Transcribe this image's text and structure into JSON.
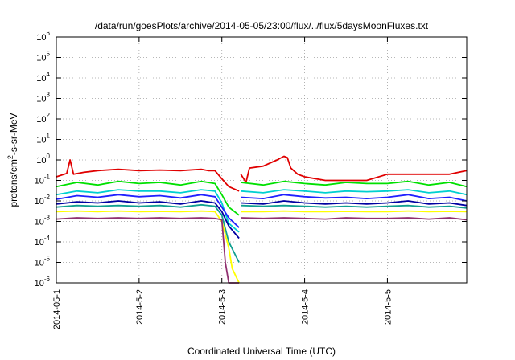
{
  "chart_data": {
    "type": "line",
    "title": "/data/run/goesPlots/archive/2014-05-05/23:00/flux/../flux/5daysMoonFluxes.txt",
    "xlabel": "Coordinated Universal Time (UTC)",
    "ylabel_parts": {
      "pre": "protons/cm",
      "sup": "2",
      "post": "-s-sr-MeV"
    },
    "y_scale": "log",
    "ylim": [
      1e-06,
      1000000.0
    ],
    "y_ticks": [
      {
        "value": 1e-06,
        "base": "10",
        "exp": "-6"
      },
      {
        "value": 1e-05,
        "base": "10",
        "exp": "-5"
      },
      {
        "value": 0.0001,
        "base": "10",
        "exp": "-4"
      },
      {
        "value": 0.001,
        "base": "10",
        "exp": "-3"
      },
      {
        "value": 0.01,
        "base": "10",
        "exp": "-2"
      },
      {
        "value": 0.1,
        "base": "10",
        "exp": "-1"
      },
      {
        "value": 1.0,
        "base": "10",
        "exp": "0"
      },
      {
        "value": 10.0,
        "base": "10",
        "exp": "1"
      },
      {
        "value": 100.0,
        "base": "10",
        "exp": "2"
      },
      {
        "value": 1000.0,
        "base": "10",
        "exp": "3"
      },
      {
        "value": 10000.0,
        "base": "10",
        "exp": "4"
      },
      {
        "value": 100000.0,
        "base": "10",
        "exp": "5"
      },
      {
        "value": 1000000.0,
        "base": "10",
        "exp": "6"
      }
    ],
    "xlim": [
      "2014-05-01T00:00",
      "2014-05-05T23:00"
    ],
    "x_ticks": [
      {
        "value": "2014-05-01T00:00",
        "label": "2014-05-1"
      },
      {
        "value": "2014-05-02T00:00",
        "label": "2014-5-2"
      },
      {
        "value": "2014-05-03T00:00",
        "label": "2014-5-3"
      },
      {
        "value": "2014-05-04T00:00",
        "label": "2014-5-4"
      },
      {
        "value": "2014-05-05T00:00",
        "label": "2014-5-5"
      }
    ],
    "grid": true,
    "legend": "none",
    "gap": [
      "2014-05-03T05:00",
      "2014-05-03T05:30"
    ],
    "series": [
      {
        "color": "#e00000",
        "x": [
          "2014-05-01T00:00",
          "2014-05-01T03:00",
          "2014-05-01T04:00",
          "2014-05-01T05:00",
          "2014-05-01T08:00",
          "2014-05-01T12:00",
          "2014-05-01T18:00",
          "2014-05-02T00:00",
          "2014-05-02T06:00",
          "2014-05-02T12:00",
          "2014-05-02T18:00",
          "2014-05-02T20:00",
          "2014-05-02T22:00",
          "2014-05-03T00:00",
          "2014-05-03T02:00",
          "2014-05-03T05:00",
          "2014-05-03T05:30",
          "2014-05-03T07:00",
          "2014-05-03T08:00",
          "2014-05-03T12:00",
          "2014-05-03T16:00",
          "2014-05-03T18:00",
          "2014-05-03T19:00",
          "2014-05-03T20:00",
          "2014-05-03T22:00",
          "2014-05-04T00:00",
          "2014-05-04T06:00",
          "2014-05-04T12:00",
          "2014-05-04T18:00",
          "2014-05-05T00:00",
          "2014-05-05T06:00",
          "2014-05-05T12:00",
          "2014-05-05T18:00",
          "2014-05-05T23:00"
        ],
        "values": [
          0.15,
          0.22,
          1.0,
          0.2,
          0.25,
          0.3,
          0.35,
          0.3,
          0.32,
          0.3,
          0.35,
          0.3,
          0.3,
          0.12,
          0.05,
          0.03,
          0.2,
          0.08,
          0.4,
          0.5,
          1.0,
          1.5,
          1.3,
          0.4,
          0.2,
          0.15,
          0.1,
          0.1,
          0.1,
          0.2,
          0.2,
          0.2,
          0.2,
          0.3
        ]
      },
      {
        "color": "#00e000",
        "x": [
          "2014-05-01T00:00",
          "2014-05-01T06:00",
          "2014-05-01T12:00",
          "2014-05-01T18:00",
          "2014-05-02T00:00",
          "2014-05-02T06:00",
          "2014-05-02T12:00",
          "2014-05-02T18:00",
          "2014-05-02T22:00",
          "2014-05-03T00:00",
          "2014-05-03T02:00",
          "2014-05-03T05:00",
          "2014-05-03T05:30",
          "2014-05-03T12:00",
          "2014-05-03T18:00",
          "2014-05-04T00:00",
          "2014-05-04T06:00",
          "2014-05-04T12:00",
          "2014-05-04T18:00",
          "2014-05-05T00:00",
          "2014-05-05T06:00",
          "2014-05-05T12:00",
          "2014-05-05T18:00",
          "2014-05-05T23:00"
        ],
        "values": [
          0.05,
          0.08,
          0.06,
          0.09,
          0.07,
          0.08,
          0.06,
          0.09,
          0.07,
          0.02,
          0.005,
          0.002,
          0.08,
          0.06,
          0.09,
          0.07,
          0.06,
          0.08,
          0.07,
          0.07,
          0.09,
          0.06,
          0.08,
          0.05
        ]
      },
      {
        "color": "#00d0d0",
        "x": [
          "2014-05-01T00:00",
          "2014-05-01T06:00",
          "2014-05-01T12:00",
          "2014-05-01T18:00",
          "2014-05-02T00:00",
          "2014-05-02T06:00",
          "2014-05-02T12:00",
          "2014-05-02T18:00",
          "2014-05-02T22:00",
          "2014-05-03T00:00",
          "2014-05-03T02:00",
          "2014-05-03T05:00",
          "2014-05-03T05:30",
          "2014-05-03T12:00",
          "2014-05-03T18:00",
          "2014-05-04T00:00",
          "2014-05-04T06:00",
          "2014-05-04T12:00",
          "2014-05-04T18:00",
          "2014-05-05T00:00",
          "2014-05-05T06:00",
          "2014-05-05T12:00",
          "2014-05-05T18:00",
          "2014-05-05T23:00"
        ],
        "values": [
          0.02,
          0.03,
          0.025,
          0.035,
          0.03,
          0.03,
          0.025,
          0.035,
          0.03,
          0.008,
          0.0008,
          0.0003,
          0.03,
          0.025,
          0.035,
          0.03,
          0.025,
          0.03,
          0.028,
          0.03,
          0.035,
          0.025,
          0.03,
          0.02
        ]
      },
      {
        "color": "#2020ff",
        "x": [
          "2014-05-01T00:00",
          "2014-05-01T06:00",
          "2014-05-01T12:00",
          "2014-05-01T18:00",
          "2014-05-02T00:00",
          "2014-05-02T06:00",
          "2014-05-02T12:00",
          "2014-05-02T18:00",
          "2014-05-02T22:00",
          "2014-05-03T00:00",
          "2014-05-03T02:00",
          "2014-05-03T05:00",
          "2014-05-03T05:30",
          "2014-05-03T12:00",
          "2014-05-03T18:00",
          "2014-05-04T00:00",
          "2014-05-04T06:00",
          "2014-05-04T12:00",
          "2014-05-04T18:00",
          "2014-05-05T00:00",
          "2014-05-05T06:00",
          "2014-05-05T12:00",
          "2014-05-05T18:00",
          "2014-05-05T23:00"
        ],
        "values": [
          0.012,
          0.018,
          0.015,
          0.02,
          0.016,
          0.018,
          0.014,
          0.02,
          0.016,
          0.005,
          0.0015,
          0.0005,
          0.015,
          0.013,
          0.02,
          0.016,
          0.014,
          0.015,
          0.013,
          0.015,
          0.02,
          0.013,
          0.015,
          0.01
        ]
      },
      {
        "color": "#0000a0",
        "x": [
          "2014-05-01T00:00",
          "2014-05-01T06:00",
          "2014-05-01T12:00",
          "2014-05-01T18:00",
          "2014-05-02T00:00",
          "2014-05-02T06:00",
          "2014-05-02T12:00",
          "2014-05-02T18:00",
          "2014-05-02T22:00",
          "2014-05-03T00:00",
          "2014-05-03T02:00",
          "2014-05-03T05:00",
          "2014-05-03T05:30",
          "2014-05-03T12:00",
          "2014-05-03T18:00",
          "2014-05-04T00:00",
          "2014-05-04T06:00",
          "2014-05-04T12:00",
          "2014-05-04T18:00",
          "2014-05-05T00:00",
          "2014-05-05T06:00",
          "2014-05-05T12:00",
          "2014-05-05T18:00",
          "2014-05-05T23:00"
        ],
        "values": [
          0.007,
          0.009,
          0.008,
          0.01,
          0.008,
          0.009,
          0.007,
          0.01,
          0.008,
          0.003,
          0.0006,
          0.00015,
          0.008,
          0.007,
          0.01,
          0.008,
          0.007,
          0.008,
          0.007,
          0.008,
          0.01,
          0.007,
          0.008,
          0.006
        ]
      },
      {
        "color": "#10a090",
        "x": [
          "2014-05-01T00:00",
          "2014-05-01T06:00",
          "2014-05-01T12:00",
          "2014-05-01T18:00",
          "2014-05-02T00:00",
          "2014-05-02T06:00",
          "2014-05-02T12:00",
          "2014-05-02T18:00",
          "2014-05-02T22:00",
          "2014-05-03T00:00",
          "2014-05-03T02:00",
          "2014-05-03T05:00",
          "2014-05-03T05:30",
          "2014-05-03T12:00",
          "2014-05-03T18:00",
          "2014-05-04T00:00",
          "2014-05-04T06:00",
          "2014-05-04T12:00",
          "2014-05-04T18:00",
          "2014-05-05T00:00",
          "2014-05-05T06:00",
          "2014-05-05T12:00",
          "2014-05-05T18:00",
          "2014-05-05T23:00"
        ],
        "values": [
          0.005,
          0.006,
          0.0055,
          0.006,
          0.0055,
          0.006,
          0.005,
          0.0065,
          0.0055,
          0.002,
          0.0001,
          1e-05,
          0.006,
          0.0055,
          0.006,
          0.0055,
          0.005,
          0.0055,
          0.005,
          0.0055,
          0.006,
          0.005,
          0.0055,
          0.0045
        ]
      },
      {
        "color": "#ffff00",
        "x": [
          "2014-05-01T00:00",
          "2014-05-01T06:00",
          "2014-05-01T12:00",
          "2014-05-01T18:00",
          "2014-05-02T00:00",
          "2014-05-02T06:00",
          "2014-05-02T12:00",
          "2014-05-02T18:00",
          "2014-05-02T22:00",
          "2014-05-03T00:00",
          "2014-05-03T02:00",
          "2014-05-03T03:00",
          "2014-05-03T05:00",
          "2014-05-03T05:30",
          "2014-05-03T12:00",
          "2014-05-03T18:00",
          "2014-05-04T00:00",
          "2014-05-04T06:00",
          "2014-05-04T12:00",
          "2014-05-04T18:00",
          "2014-05-05T00:00",
          "2014-05-05T06:00",
          "2014-05-05T12:00",
          "2014-05-05T18:00",
          "2014-05-05T23:00"
        ],
        "values": [
          0.003,
          0.0032,
          0.003,
          0.0032,
          0.003,
          0.0031,
          0.003,
          0.0032,
          0.003,
          0.001,
          5e-05,
          5e-06,
          1e-06,
          0.003,
          0.003,
          0.0032,
          0.003,
          0.003,
          0.0031,
          0.003,
          0.003,
          0.0032,
          0.003,
          0.0031,
          0.003
        ]
      },
      {
        "color": "#903070",
        "x": [
          "2014-05-01T00:00",
          "2014-05-01T06:00",
          "2014-05-01T12:00",
          "2014-05-01T18:00",
          "2014-05-02T00:00",
          "2014-05-02T06:00",
          "2014-05-02T12:00",
          "2014-05-02T18:00",
          "2014-05-02T22:00",
          "2014-05-03T00:00",
          "2014-05-03T01:00",
          "2014-05-03T02:00",
          "2014-05-03T05:00",
          "2014-05-03T05:30",
          "2014-05-03T12:00",
          "2014-05-03T18:00",
          "2014-05-04T00:00",
          "2014-05-04T06:00",
          "2014-05-04T12:00",
          "2014-05-04T18:00",
          "2014-05-05T00:00",
          "2014-05-05T06:00",
          "2014-05-05T12:00",
          "2014-05-05T18:00",
          "2014-05-05T23:00"
        ],
        "values": [
          0.0013,
          0.0015,
          0.0014,
          0.0015,
          0.0014,
          0.0015,
          0.0014,
          0.0015,
          0.0014,
          0.0012,
          1e-05,
          1e-06,
          1e-06,
          0.0015,
          0.0014,
          0.0015,
          0.0014,
          0.0013,
          0.0015,
          0.0014,
          0.0014,
          0.0015,
          0.0013,
          0.0015,
          0.0012
        ]
      }
    ]
  }
}
